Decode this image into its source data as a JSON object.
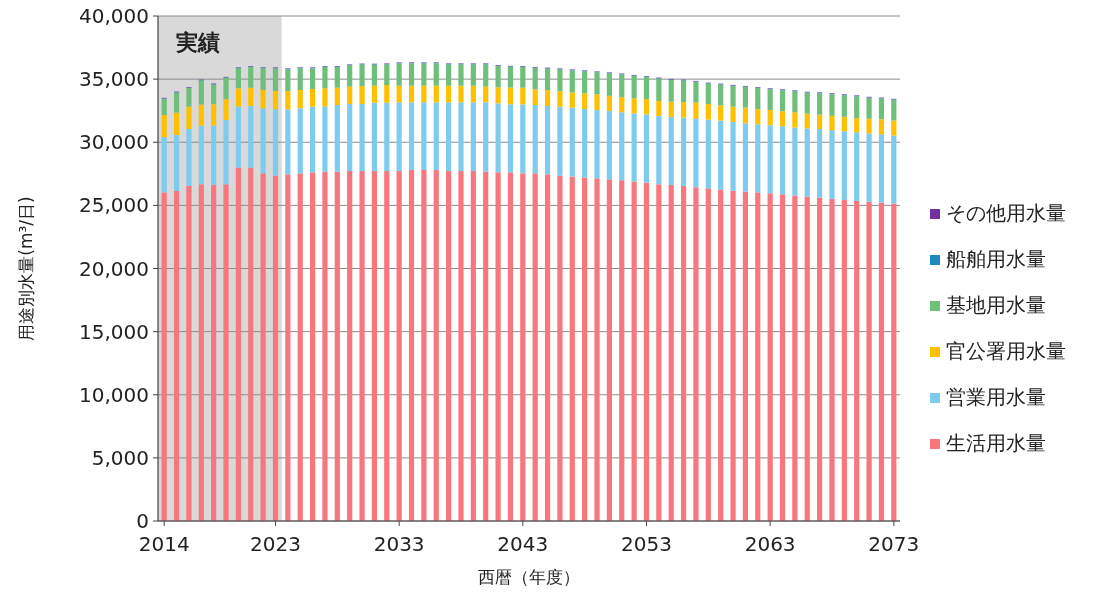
{
  "chart_data": {
    "type": "bar",
    "stacked": true,
    "x": [
      2014,
      2015,
      2016,
      2017,
      2018,
      2019,
      2020,
      2021,
      2022,
      2023,
      2024,
      2025,
      2026,
      2027,
      2028,
      2029,
      2030,
      2031,
      2032,
      2033,
      2034,
      2035,
      2036,
      2037,
      2038,
      2039,
      2040,
      2041,
      2042,
      2043,
      2044,
      2045,
      2046,
      2047,
      2048,
      2049,
      2050,
      2051,
      2052,
      2053,
      2054,
      2055,
      2056,
      2057,
      2058,
      2059,
      2060,
      2061,
      2062,
      2063,
      2064,
      2065,
      2066,
      2067,
      2068,
      2069,
      2070,
      2071,
      2072,
      2073
    ],
    "xlim": [
      2013.5,
      2073.5
    ],
    "xticks": [
      2014,
      2023,
      2033,
      2043,
      2053,
      2063,
      2073
    ],
    "ylim": [
      0,
      40000
    ],
    "yticks": [
      0,
      {
        "value": 5000,
        "label": "5,000"
      },
      {
        "value": 10000,
        "label": "10,000"
      },
      {
        "value": 15000,
        "label": "15,000"
      },
      {
        "value": 20000,
        "label": "20,000"
      },
      {
        "value": 25000,
        "label": "25,000"
      },
      {
        "value": 30000,
        "label": "30,000"
      },
      {
        "value": 35000,
        "label": "35,000"
      },
      {
        "value": 40000,
        "label": "40,000"
      }
    ],
    "xlabel": "西暦（年度）",
    "ylabel": "用途別水量(m³/日)",
    "grid": "y",
    "legend": "right",
    "bands": [
      {
        "axis": "x",
        "from": 2013.5,
        "to": 2023.5,
        "label": "実績",
        "color": "#d9d9d9"
      }
    ],
    "series": [
      {
        "name": "生活用水量",
        "color": "#f8767d",
        "values": [
          26030,
          26140,
          26540,
          26670,
          26620,
          26670,
          27990,
          27990,
          27540,
          27350,
          27460,
          27540,
          27620,
          27670,
          27670,
          27720,
          27720,
          27720,
          27720,
          27720,
          27800,
          27800,
          27800,
          27720,
          27720,
          27720,
          27670,
          27620,
          27620,
          27540,
          27540,
          27460,
          27350,
          27280,
          27200,
          27140,
          27060,
          26990,
          26880,
          26800,
          26670,
          26620,
          26540,
          26430,
          26350,
          26250,
          26170,
          26090,
          26030,
          25960,
          25880,
          25770,
          25690,
          25610,
          25510,
          25430,
          25350,
          25290,
          25220,
          25140
        ]
      },
      {
        "name": "営業用水量",
        "color": "#7ecbf0",
        "values": [
          4380,
          4440,
          4510,
          4650,
          4700,
          5100,
          4830,
          4880,
          5150,
          5280,
          5150,
          5150,
          5200,
          5150,
          5280,
          5310,
          5310,
          5410,
          5410,
          5440,
          5360,
          5360,
          5360,
          5440,
          5440,
          5440,
          5490,
          5460,
          5390,
          5460,
          5410,
          5410,
          5460,
          5460,
          5440,
          5410,
          5410,
          5390,
          5410,
          5410,
          5410,
          5390,
          5410,
          5440,
          5440,
          5460,
          5440,
          5410,
          5390,
          5390,
          5390,
          5390,
          5410,
          5440,
          5440,
          5440,
          5440,
          5410,
          5410,
          5390
        ]
      },
      {
        "name": "官公署用水量",
        "color": "#ffc000",
        "values": [
          1740,
          1770,
          1770,
          1660,
          1690,
          1640,
          1450,
          1450,
          1450,
          1430,
          1450,
          1450,
          1400,
          1450,
          1370,
          1370,
          1430,
          1350,
          1400,
          1320,
          1320,
          1320,
          1320,
          1320,
          1320,
          1320,
          1240,
          1270,
          1320,
          1320,
          1240,
          1270,
          1240,
          1210,
          1240,
          1240,
          1210,
          1210,
          1190,
          1210,
          1190,
          1210,
          1240,
          1270,
          1240,
          1210,
          1210,
          1240,
          1210,
          1210,
          1190,
          1210,
          1160,
          1140,
          1140,
          1140,
          1110,
          1160,
          1190,
          1190
        ]
      },
      {
        "name": "基地用水量",
        "color": "#6dbf7a",
        "values": [
          1290,
          1580,
          1480,
          1900,
          1560,
          1690,
          1580,
          1640,
          1720,
          1790,
          1720,
          1720,
          1640,
          1690,
          1640,
          1690,
          1690,
          1660,
          1640,
          1770,
          1770,
          1770,
          1770,
          1690,
          1690,
          1690,
          1770,
          1690,
          1640,
          1640,
          1690,
          1690,
          1720,
          1740,
          1740,
          1740,
          1770,
          1770,
          1770,
          1740,
          1770,
          1720,
          1690,
          1640,
          1610,
          1640,
          1640,
          1640,
          1660,
          1640,
          1660,
          1660,
          1660,
          1690,
          1720,
          1720,
          1740,
          1660,
          1640,
          1640
        ]
      },
      {
        "name": "船舶用水量",
        "color": "#1f8ac0",
        "values": [
          40,
          40,
          40,
          40,
          40,
          40,
          40,
          40,
          40,
          40,
          40,
          40,
          40,
          40,
          40,
          40,
          40,
          40,
          40,
          40,
          40,
          40,
          40,
          40,
          40,
          40,
          40,
          40,
          40,
          40,
          40,
          40,
          40,
          40,
          40,
          40,
          40,
          40,
          40,
          40,
          40,
          40,
          40,
          40,
          40,
          40,
          40,
          40,
          40,
          40,
          40,
          40,
          40,
          40,
          40,
          40,
          40,
          40,
          40,
          40
        ]
      },
      {
        "name": "その他用水量",
        "color": "#7030a0",
        "values": [
          40,
          40,
          40,
          40,
          40,
          40,
          40,
          40,
          40,
          40,
          40,
          40,
          40,
          40,
          40,
          40,
          40,
          40,
          40,
          40,
          40,
          40,
          40,
          40,
          40,
          40,
          40,
          40,
          40,
          40,
          40,
          40,
          40,
          40,
          40,
          40,
          40,
          40,
          40,
          40,
          40,
          40,
          40,
          40,
          40,
          40,
          40,
          40,
          40,
          40,
          40,
          40,
          40,
          40,
          40,
          40,
          40,
          40,
          40,
          40
        ]
      }
    ]
  }
}
